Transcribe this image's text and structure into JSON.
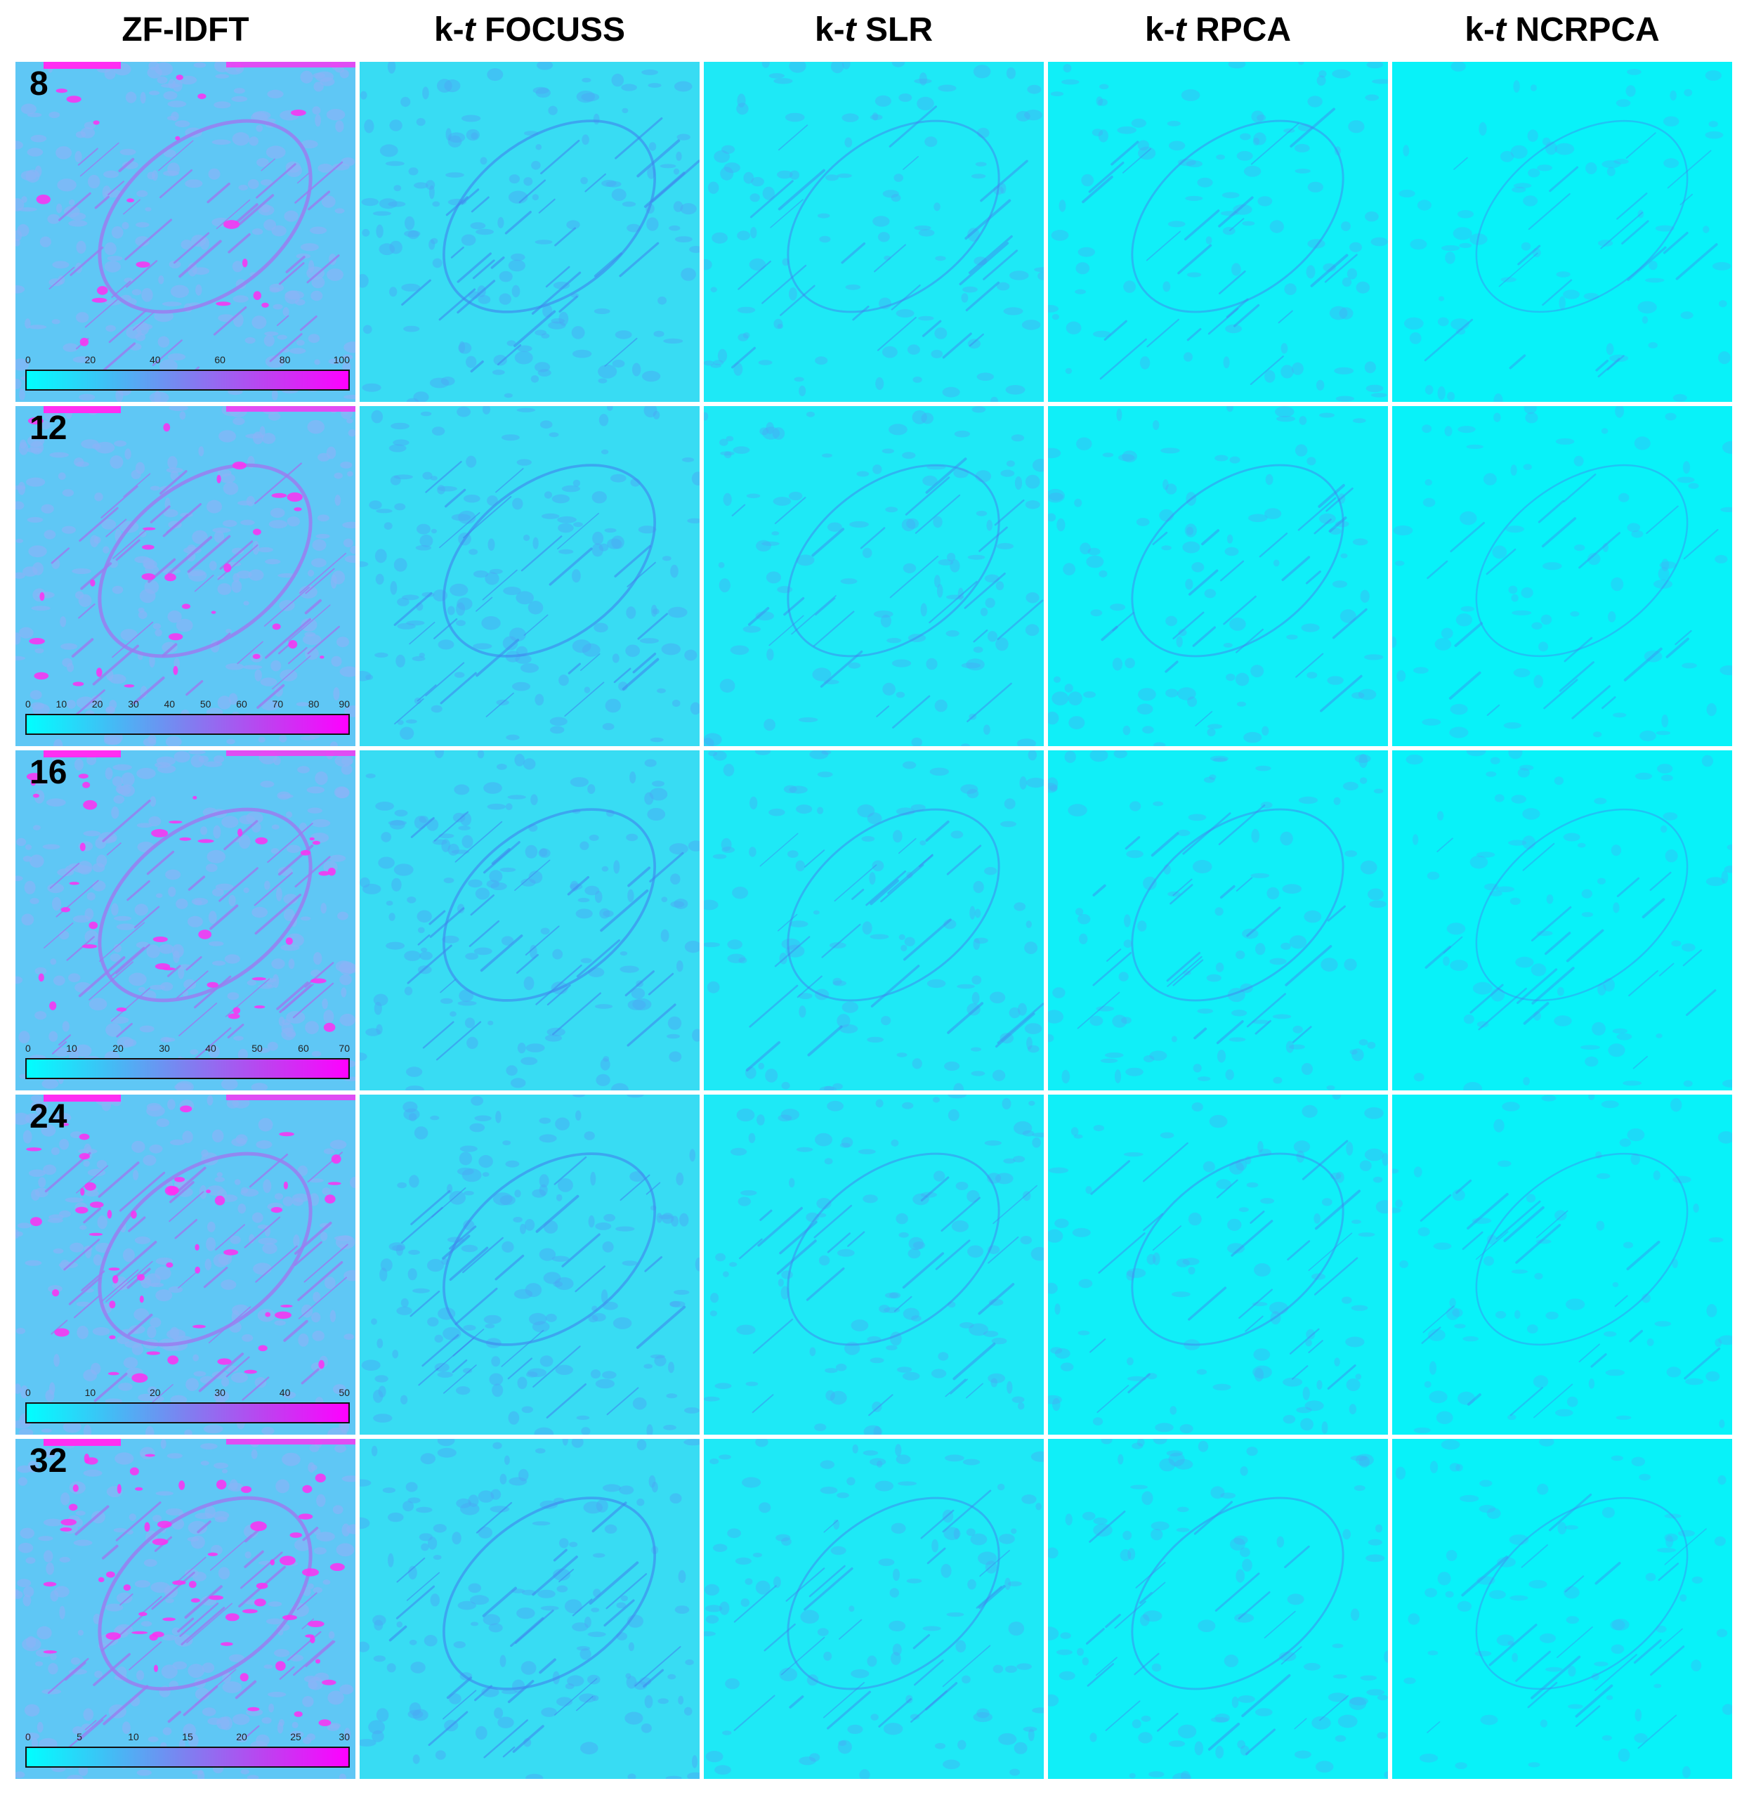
{
  "columns": [
    {
      "prefix": "",
      "italic": "",
      "suffix": "ZF-IDFT"
    },
    {
      "prefix": "k-",
      "italic": "t",
      "suffix": " FOCUSS"
    },
    {
      "prefix": "k-",
      "italic": "t",
      "suffix": " SLR"
    },
    {
      "prefix": "k-",
      "italic": "t",
      "suffix": " RPCA"
    },
    {
      "prefix": "k-",
      "italic": "t",
      "suffix": " NCRPCA"
    }
  ],
  "rows": [
    {
      "label": "8",
      "colorbar_ticks": [
        "0",
        "20",
        "40",
        "60",
        "80",
        "100"
      ]
    },
    {
      "label": "12",
      "colorbar_ticks": [
        "0",
        "10",
        "20",
        "30",
        "40",
        "50",
        "60",
        "70",
        "80",
        "90"
      ]
    },
    {
      "label": "16",
      "colorbar_ticks": [
        "0",
        "10",
        "20",
        "30",
        "40",
        "50",
        "60",
        "70"
      ]
    },
    {
      "label": "24",
      "colorbar_ticks": [
        "0",
        "10",
        "20",
        "30",
        "40",
        "50"
      ]
    },
    {
      "label": "32",
      "colorbar_ticks": [
        "0",
        "5",
        "10",
        "15",
        "20",
        "25",
        "30"
      ]
    }
  ],
  "colormap": {
    "low": "#00ffff",
    "mid": "#7f7ff0",
    "high": "#ff00ff"
  },
  "column_intensity": [
    1.0,
    0.55,
    0.35,
    0.3,
    0.18
  ]
}
